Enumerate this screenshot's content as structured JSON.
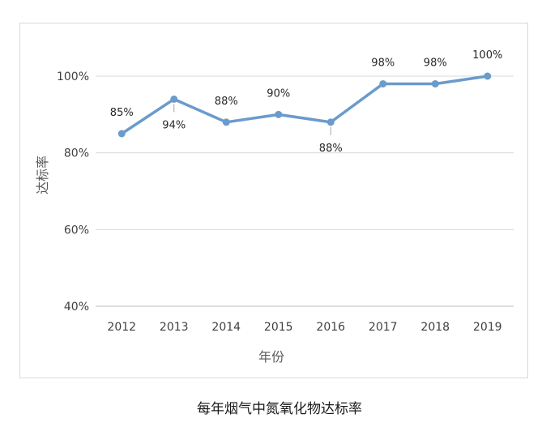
{
  "caption": "每年烟气中氮氧化物达标率",
  "chart_data": {
    "type": "line",
    "title": "",
    "xlabel": "年份",
    "ylabel": "达标率",
    "categories": [
      "2012",
      "2013",
      "2014",
      "2015",
      "2016",
      "2017",
      "2018",
      "2019"
    ],
    "series": [
      {
        "values": [
          85,
          94,
          88,
          90,
          88,
          98,
          98,
          100
        ],
        "data_labels": [
          "85%",
          "94%",
          "88%",
          "90%",
          "88%",
          "98%",
          "98%",
          "100%"
        ],
        "color": "#6a9bcb"
      }
    ],
    "ylim": [
      40,
      100
    ],
    "yticks": [
      40,
      60,
      80,
      100
    ],
    "ytick_labels": [
      "40%",
      "60%",
      "80%",
      "100%"
    ],
    "grid": true,
    "legend": "none",
    "colors": {
      "line": "#6a9bcb",
      "grid": "#d9d9d9",
      "axis": "#bfbfbf"
    }
  }
}
